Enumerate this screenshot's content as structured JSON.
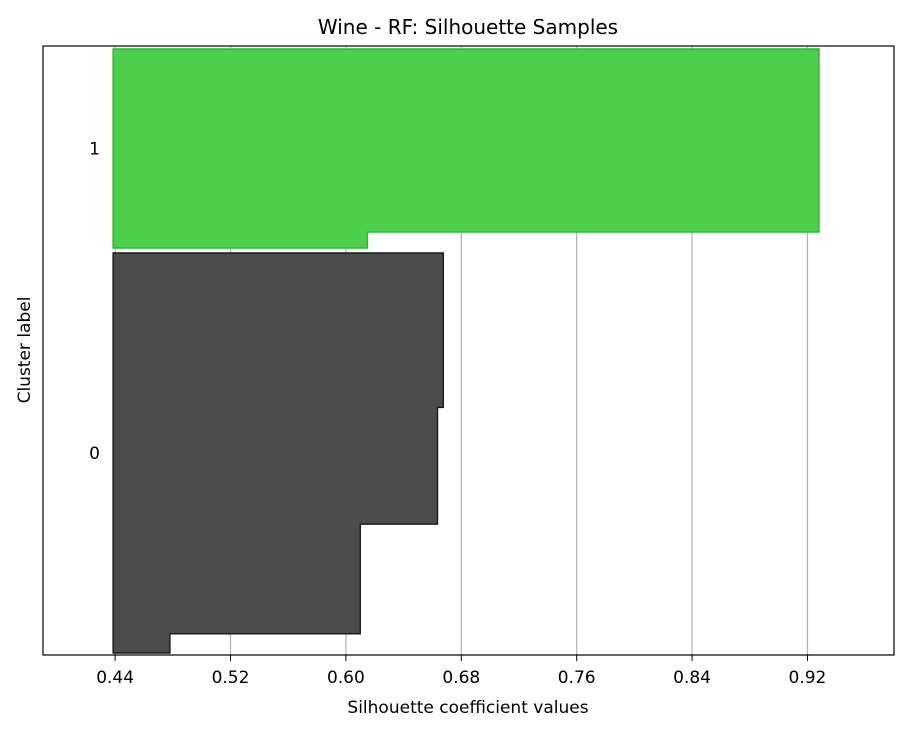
{
  "chart_data": {
    "type": "silhouette",
    "title": "Wine - RF: Silhouette Samples",
    "xlabel": "Silhouette coefficient values",
    "ylabel": "Cluster label",
    "xlim": [
      0.39,
      0.98
    ],
    "xticks": [
      0.44,
      0.52,
      0.6,
      0.68,
      0.76,
      0.84,
      0.92
    ],
    "xtick_labels": [
      "0.44",
      "0.52",
      "0.60",
      "0.68",
      "0.76",
      "0.84",
      "0.92"
    ],
    "grid": "x",
    "clusters": [
      {
        "label": "0",
        "color": "#4c4c4c",
        "edge": "#1a1a1a",
        "steps": [
          {
            "value": 0.478,
            "share": 0.048
          },
          {
            "value": 0.61,
            "share": 0.274
          },
          {
            "value": 0.6635,
            "share": 0.292
          },
          {
            "value": 0.6675,
            "share": 0.386
          }
        ]
      },
      {
        "label": "1",
        "color": "#4ccf4c",
        "edge": "#2ab82a",
        "steps": [
          {
            "value": 0.615,
            "share": 0.08
          },
          {
            "value": 0.928,
            "share": 0.92
          }
        ]
      }
    ]
  }
}
